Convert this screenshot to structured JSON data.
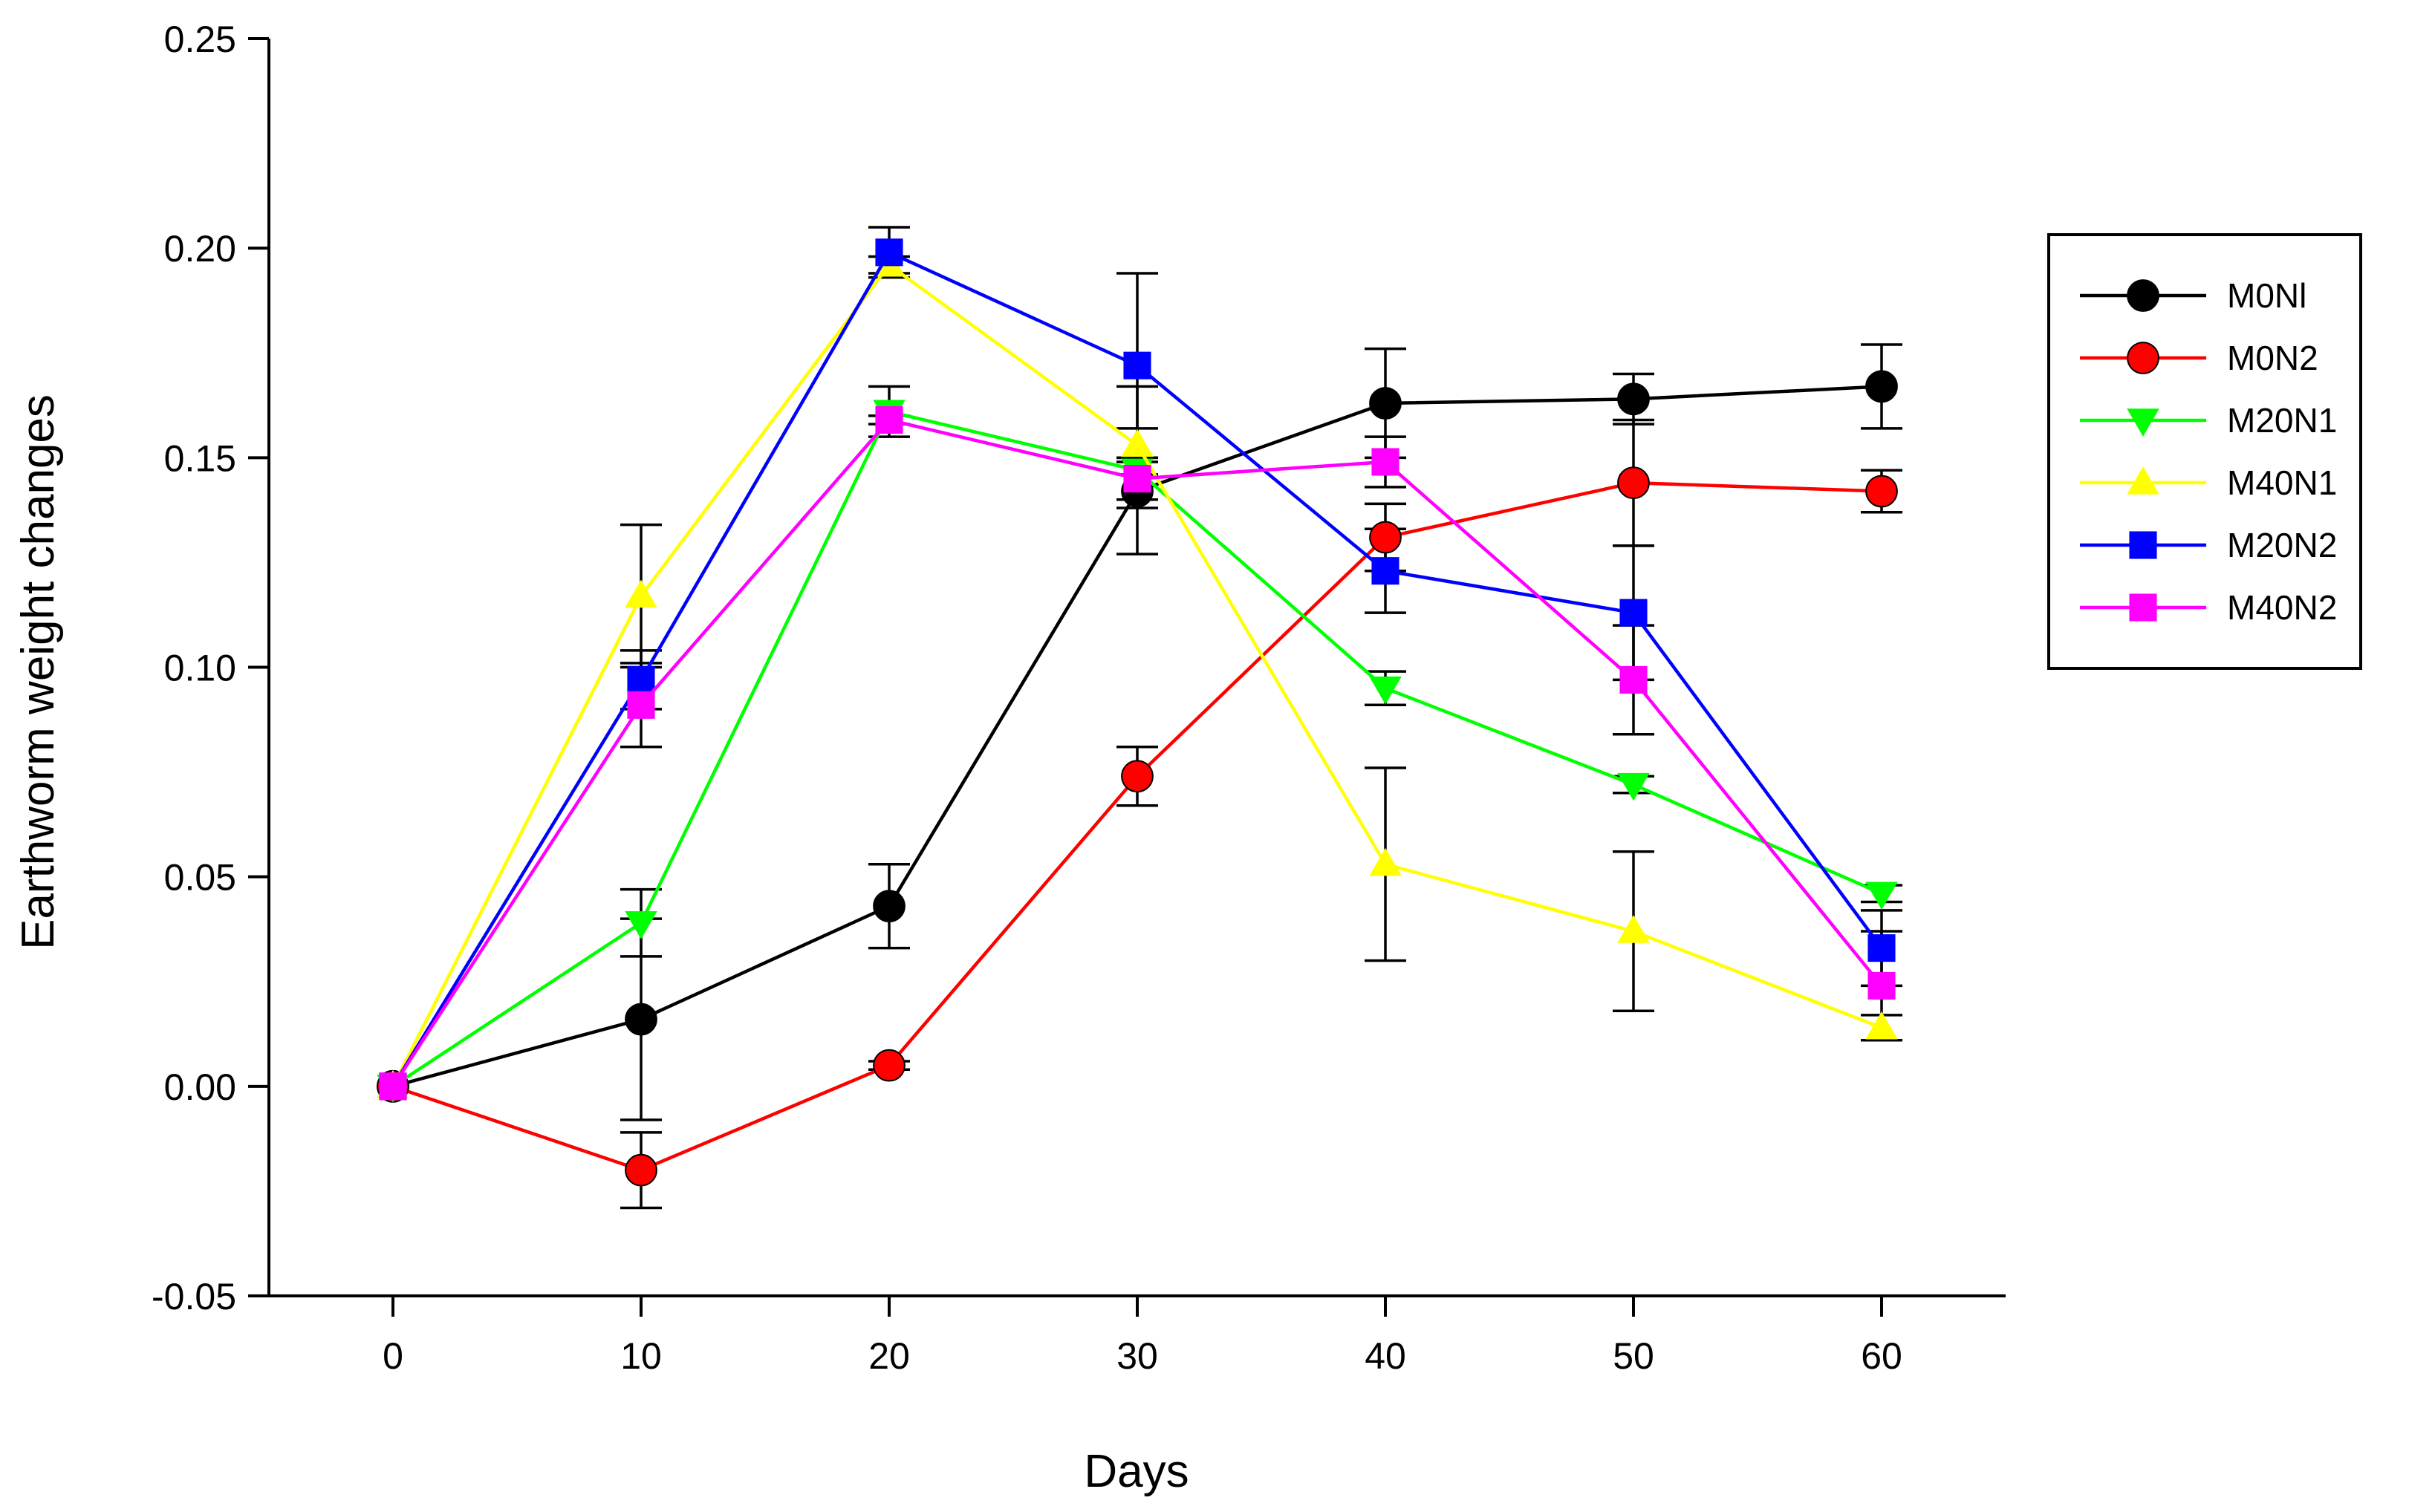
{
  "chart_data": {
    "type": "line",
    "title": "",
    "xlabel": "Days",
    "ylabel": "Earthworm weight changes",
    "x": [
      0,
      10,
      20,
      30,
      40,
      50,
      60
    ],
    "xlim": [
      -5,
      65
    ],
    "ylim": [
      -0.05,
      0.25
    ],
    "xticks": [
      0,
      10,
      20,
      30,
      40,
      50,
      60
    ],
    "xtick_labels": [
      "0",
      "10",
      "20",
      "30",
      "40",
      "50",
      "60"
    ],
    "yticks": [
      -0.05,
      0,
      0.05,
      0.1,
      0.15,
      0.2,
      0.25
    ],
    "ytick_labels": [
      "-0.05",
      "0.00",
      "0.05",
      "0.10",
      "0.15",
      "0.20",
      "0.25"
    ],
    "grid": false,
    "legend_position": "right",
    "series": [
      {
        "name": "M0Nl",
        "color": "#000000",
        "marker": "circle",
        "values": [
          0,
          0.016,
          0.043,
          0.142,
          0.163,
          0.164,
          0.167
        ],
        "errors": [
          0,
          0.024,
          0.01,
          0.004,
          0.013,
          0.006,
          0.01
        ]
      },
      {
        "name": "M0N2",
        "color": "#ff0000",
        "marker": "circle",
        "values": [
          0,
          -0.02,
          0.005,
          0.074,
          0.131,
          0.144,
          0.142
        ],
        "errors": [
          0,
          0.009,
          0.001,
          0.007,
          0.008,
          0.015,
          0.005
        ]
      },
      {
        "name": "M20N1",
        "color": "#00ff00",
        "marker": "triangle-down",
        "values": [
          0,
          0.039,
          0.161,
          0.147,
          0.095,
          0.072,
          0.046
        ],
        "errors": [
          0,
          0.008,
          0.006,
          0.02,
          0.004,
          0.002,
          0.002
        ]
      },
      {
        "name": "M40N1",
        "color": "#ffff00",
        "marker": "triangle-up",
        "values": [
          0,
          0.117,
          0.196,
          0.153,
          0.053,
          0.037,
          0.014
        ],
        "errors": [
          0,
          0.017,
          0.002,
          0.004,
          0.023,
          0.019,
          0.003
        ]
      },
      {
        "name": "M20N2",
        "color": "#0000ff",
        "marker": "square",
        "values": [
          0,
          0.097,
          0.199,
          0.172,
          0.123,
          0.113,
          0.033
        ],
        "errors": [
          0,
          0.007,
          0.006,
          0.022,
          0.01,
          0.016,
          0.009
        ]
      },
      {
        "name": "M40N2",
        "color": "#ff00ff",
        "marker": "square",
        "values": [
          0,
          0.091,
          0.159,
          0.145,
          0.149,
          0.097,
          0.024
        ],
        "errors": [
          0,
          0.01,
          0.001,
          0.005,
          0.006,
          0.013,
          0.013
        ]
      }
    ]
  }
}
